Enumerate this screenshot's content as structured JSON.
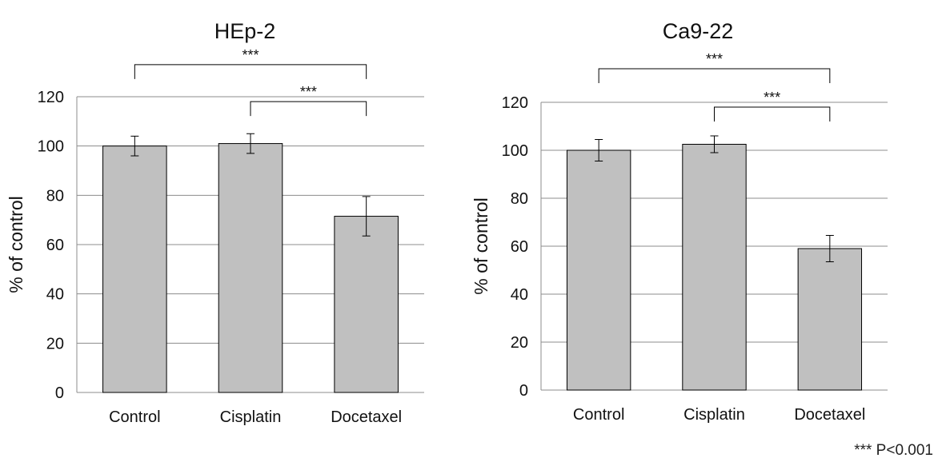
{
  "colors": {
    "bar_fill": "#c0c0c0",
    "bar_stroke": "#000000",
    "grid": "#8c8c8c",
    "text": "#111111"
  },
  "footnote": "*** P<0.001",
  "chart_data": [
    {
      "type": "bar",
      "title": "HEp-2",
      "xlabel": "",
      "ylabel": "% of control",
      "ylim": [
        0,
        120
      ],
      "yticks": [
        0,
        20,
        40,
        60,
        80,
        100,
        120
      ],
      "grid": true,
      "categories": [
        "Control",
        "Cisplatin",
        "Docetaxel"
      ],
      "values": [
        100,
        101,
        71.5
      ],
      "errors": [
        4,
        4,
        8
      ],
      "significance": [
        {
          "from": "Control",
          "to": "Docetaxel",
          "label": "***",
          "level": 133
        },
        {
          "from": "Cisplatin",
          "to": "Docetaxel",
          "label": "***",
          "level": 118
        }
      ]
    },
    {
      "type": "bar",
      "title": "Ca9-22",
      "xlabel": "",
      "ylabel": "% of control",
      "ylim": [
        0,
        120
      ],
      "yticks": [
        0,
        20,
        40,
        60,
        80,
        100,
        120
      ],
      "grid": true,
      "categories": [
        "Control",
        "Cisplatin",
        "Docetaxel"
      ],
      "values": [
        100,
        102.5,
        59
      ],
      "errors": [
        4.5,
        3.5,
        5.5
      ],
      "significance": [
        {
          "from": "Control",
          "to": "Docetaxel",
          "label": "***",
          "level": 134
        },
        {
          "from": "Cisplatin",
          "to": "Docetaxel",
          "label": "***",
          "level": 118
        }
      ]
    }
  ]
}
